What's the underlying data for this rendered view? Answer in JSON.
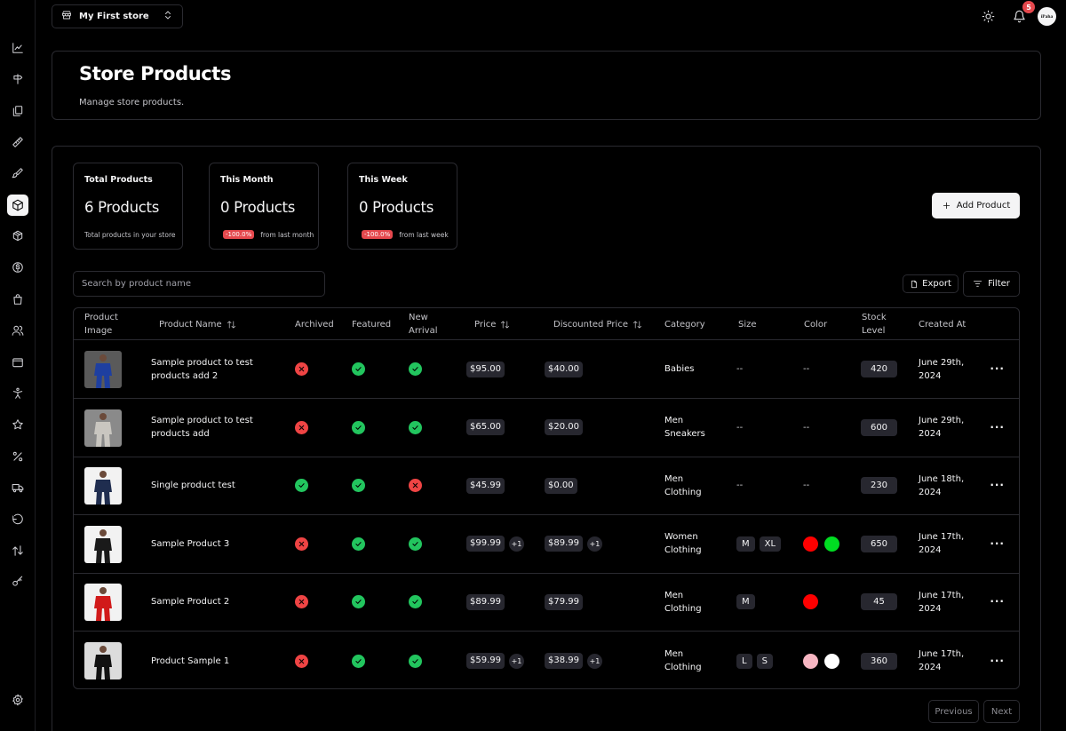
{
  "store": {
    "name": "My First store"
  },
  "topbar": {
    "notifications_count": "5",
    "avatar_text": "iPaha"
  },
  "sidebar": [
    {
      "icon": "chart-line-icon"
    },
    {
      "icon": "signpost-icon"
    },
    {
      "icon": "pages-icon"
    },
    {
      "icon": "ruler-icon"
    },
    {
      "icon": "paintbrush-icon"
    },
    {
      "icon": "package-icon",
      "active": true
    },
    {
      "icon": "boxes-icon"
    },
    {
      "icon": "dollar-icon"
    },
    {
      "icon": "shopping-bag-icon"
    },
    {
      "icon": "users-icon"
    },
    {
      "icon": "wallet-icon"
    },
    {
      "icon": "accessibility-icon"
    },
    {
      "icon": "star-icon"
    },
    {
      "icon": "percent-icon"
    },
    {
      "icon": "truck-icon"
    },
    {
      "icon": "undo-icon"
    },
    {
      "icon": "transfer-icon"
    },
    {
      "icon": "key-icon"
    },
    {
      "icon": "settings-icon"
    }
  ],
  "header": {
    "title": "Store Products",
    "subtitle": "Manage store products."
  },
  "stats": [
    {
      "label": "Total Products",
      "value": "6 Products",
      "description": "Total products in your store"
    },
    {
      "label": "This Month",
      "value": "0 Products",
      "change": "-100.0%",
      "change_text": "from last month"
    },
    {
      "label": "This Week",
      "value": "0 Products",
      "change": "-100.0%",
      "change_text": "from last week"
    }
  ],
  "actions": {
    "add_label": "Add Product",
    "export_label": "Export",
    "filter_label": "Filter"
  },
  "search": {
    "placeholder": "Search by product name",
    "value": ""
  },
  "table": {
    "columns": {
      "image": "Product Image",
      "name": "Product Name",
      "archived": "Archived",
      "featured": "Featured",
      "new_arrival": "New Arrival",
      "price": "Price",
      "discounted": "Discounted Price",
      "category": "Category",
      "size": "Size",
      "color": "Color",
      "stock": "Stock Level",
      "created": "Created At"
    },
    "rows": [
      {
        "name": "Sample product to test products add 2",
        "archived": false,
        "featured": true,
        "new_arrival": true,
        "price": "$95.00",
        "price_more": "",
        "discounted": "$40.00",
        "discounted_more": "",
        "category": "Babies",
        "sizes": [],
        "colors": [],
        "stock": "420",
        "created": "June 29th, 2024",
        "thumb_color": "#1e3fa0"
      },
      {
        "name": "Sample product to test products add",
        "archived": false,
        "featured": true,
        "new_arrival": true,
        "price": "$65.00",
        "price_more": "",
        "discounted": "$20.00",
        "discounted_more": "",
        "category": "Men Sneakers",
        "sizes": [],
        "colors": [],
        "stock": "600",
        "created": "June 29th, 2024",
        "thumb_color": "#c9c6c0"
      },
      {
        "name": "Single product test",
        "archived": true,
        "featured": true,
        "new_arrival": false,
        "price": "$45.99",
        "price_more": "",
        "discounted": "$0.00",
        "discounted_more": "",
        "category": "Men Clothing",
        "sizes": [],
        "colors": [],
        "stock": "230",
        "created": "June 18th, 2024",
        "thumb_color": "#1f2d4f"
      },
      {
        "name": "Sample Product 3",
        "archived": false,
        "featured": true,
        "new_arrival": true,
        "price": "$99.99",
        "price_more": "+1",
        "discounted": "$89.99",
        "discounted_more": "+1",
        "category": "Women Clothing",
        "sizes": [
          "M",
          "XL"
        ],
        "colors": [
          "#ff0000",
          "#00dd22"
        ],
        "stock": "650",
        "created": "June 17th, 2024",
        "thumb_color": "#1a1a1a"
      },
      {
        "name": "Sample Product 2",
        "archived": false,
        "featured": true,
        "new_arrival": true,
        "price": "$89.99",
        "price_more": "",
        "discounted": "$79.99",
        "discounted_more": "",
        "category": "Men Clothing",
        "sizes": [
          "M"
        ],
        "colors": [
          "#ff0000"
        ],
        "stock": "45",
        "created": "June 17th, 2024",
        "thumb_color": "#d11a1a"
      },
      {
        "name": "Product Sample 1",
        "archived": false,
        "featured": true,
        "new_arrival": true,
        "price": "$59.99",
        "price_more": "+1",
        "discounted": "$38.99",
        "discounted_more": "+1",
        "category": "Men Clothing",
        "sizes": [
          "L",
          "S"
        ],
        "colors": [
          "#f7b6c2",
          "#ffffff"
        ],
        "stock": "360",
        "created": "June 17th, 2024",
        "thumb_color": "#111111"
      }
    ],
    "empty_marker": "--"
  },
  "pagination": {
    "previous_label": "Previous",
    "next_label": "Next"
  }
}
